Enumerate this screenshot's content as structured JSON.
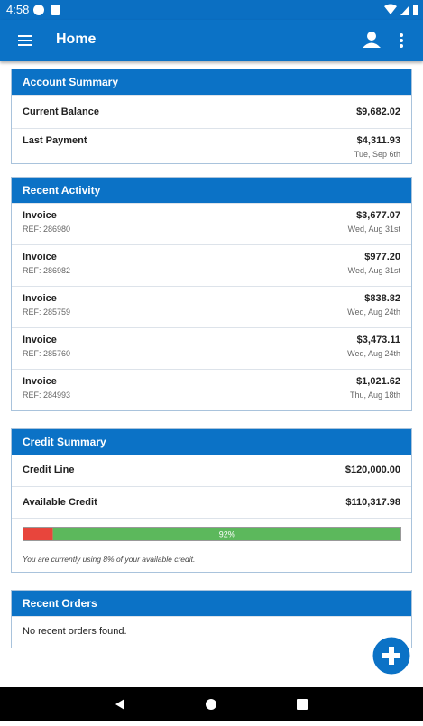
{
  "status_bar": {
    "time": "4:58"
  },
  "app_bar": {
    "title": "Home"
  },
  "account_summary": {
    "title": "Account Summary",
    "rows": [
      {
        "label": "Current Balance",
        "amount": "$9,682.02"
      },
      {
        "label": "Last Payment",
        "amount": "$4,311.93",
        "date": "Tue, Sep 6th"
      }
    ]
  },
  "recent_activity": {
    "title": "Recent Activity",
    "items": [
      {
        "label": "Invoice",
        "ref": "REF: 286980",
        "amount": "$3,677.07",
        "date": "Wed, Aug 31st"
      },
      {
        "label": "Invoice",
        "ref": "REF: 286982",
        "amount": "$977.20",
        "date": "Wed, Aug 31st"
      },
      {
        "label": "Invoice",
        "ref": "REF: 285759",
        "amount": "$838.82",
        "date": "Wed, Aug 24th"
      },
      {
        "label": "Invoice",
        "ref": "REF: 285760",
        "amount": "$3,473.11",
        "date": "Wed, Aug 24th"
      },
      {
        "label": "Invoice",
        "ref": "REF: 284993",
        "amount": "$1,021.62",
        "date": "Thu, Aug 18th"
      }
    ]
  },
  "credit_summary": {
    "title": "Credit Summary",
    "rows": [
      {
        "label": "Credit Line",
        "amount": "$120,000.00"
      },
      {
        "label": "Available Credit",
        "amount": "$110,317.98"
      }
    ],
    "progress": {
      "used": 8,
      "available": {
        "value": 92,
        "label": "92%"
      }
    },
    "note": "You are currently using 8% of your available credit."
  },
  "recent_orders": {
    "title": "Recent Orders",
    "message": "No recent orders found."
  }
}
